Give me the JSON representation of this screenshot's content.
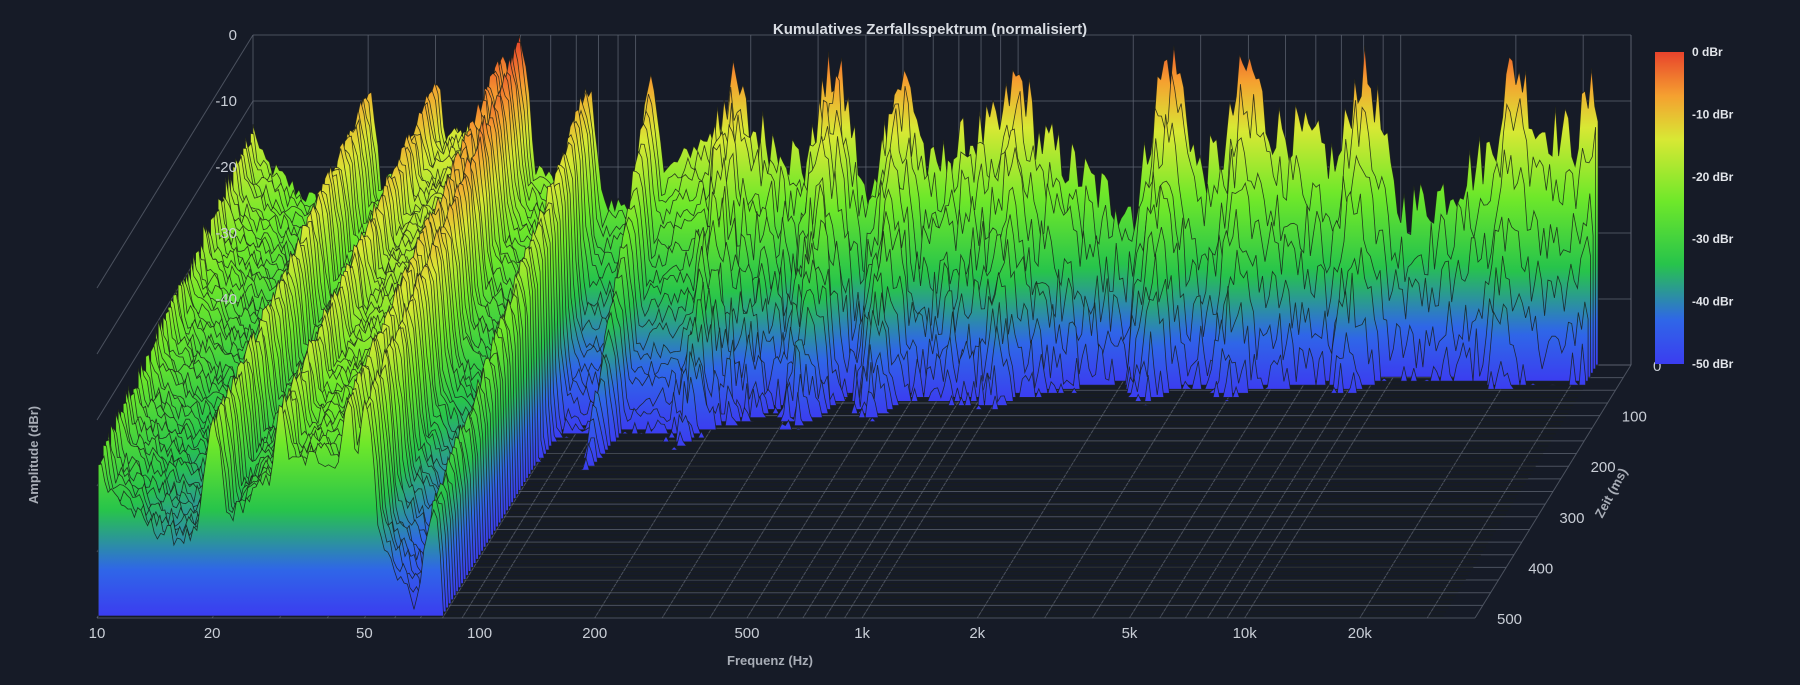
{
  "colors": {
    "background": "#161b27",
    "grid": "#5d6472",
    "colormap": [
      "#3b3df0",
      "#2f66e8",
      "#27c44b",
      "#6ee82a",
      "#d8e834",
      "#f5a030",
      "#e8432c"
    ]
  },
  "chart_data": {
    "type": "waterfall-3d",
    "title": "Kumulatives Zerfallsspektrum (normalisiert)",
    "xlabel": "Frequenz (Hz)",
    "ylabel": "Amplitude (dBr)",
    "zlabel": "Zeit (ms)",
    "x_scale": "log",
    "xlim": [
      10,
      40000
    ],
    "x_ticks": [
      10,
      20,
      50,
      100,
      200,
      500,
      1000,
      2000,
      5000,
      10000,
      20000
    ],
    "x_tick_labels": [
      "10",
      "20",
      "50",
      "100",
      "200",
      "500",
      "1k",
      "2k",
      "5k",
      "10k",
      "20k"
    ],
    "ylim": [
      -50,
      0
    ],
    "y_ticks": [
      0,
      -10,
      -20,
      -30,
      -40
    ],
    "y_tick_labels": [
      "0",
      "-10",
      "-20",
      "-30",
      "-40"
    ],
    "zlim": [
      0,
      500
    ],
    "z_ticks": [
      0,
      100,
      200,
      300,
      400,
      500
    ],
    "z_tick_labels": [
      "0",
      "100",
      "200",
      "300",
      "400",
      "500"
    ],
    "colorbar": {
      "range": [
        -50,
        0
      ],
      "labels": [
        "0 dBr",
        "-10 dBr",
        "-20 dBr",
        "-30 dBr",
        "-40 dBr",
        "-50 dBr"
      ]
    },
    "grid": true,
    "legend": "right colorbar",
    "peaks_first_slice": [
      {
        "freq": 10,
        "dBr": -14
      },
      {
        "freq": 20,
        "dBr": -9
      },
      {
        "freq": 30,
        "dBr": -7
      },
      {
        "freq": 45,
        "dBr": -3
      },
      {
        "freq": 50,
        "dBr": -1
      },
      {
        "freq": 75,
        "dBr": -8
      },
      {
        "freq": 110,
        "dBr": -7
      },
      {
        "freq": 180,
        "dBr": -8
      },
      {
        "freq": 330,
        "dBr": -6
      },
      {
        "freq": 500,
        "dBr": -7
      },
      {
        "freq": 1000,
        "dBr": -7
      },
      {
        "freq": 2500,
        "dBr": -4
      },
      {
        "freq": 4000,
        "dBr": -5
      },
      {
        "freq": 8000,
        "dBr": -6
      },
      {
        "freq": 20000,
        "dBr": -5
      },
      {
        "freq": 32000,
        "dBr": -9
      }
    ]
  }
}
